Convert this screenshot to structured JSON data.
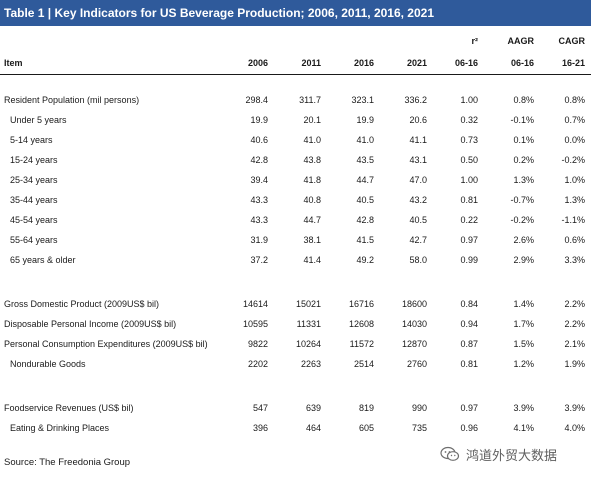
{
  "title": "Table 1 | Key Indicators for US Beverage Production; 2006, 2011, 2016, 2021",
  "header": {
    "row1": [
      "",
      "",
      "",
      "",
      "",
      "r²",
      "AAGR",
      "CAGR"
    ],
    "row2": [
      "Item",
      "2006",
      "2011",
      "2016",
      "2021",
      "06-16",
      "06-16",
      "16-21"
    ]
  },
  "groups": [
    {
      "rows": [
        {
          "label": "Resident Population (mil persons)",
          "indent": false,
          "values": [
            "298.4",
            "311.7",
            "323.1",
            "336.2",
            "1.00",
            "0.8%",
            "0.8%"
          ]
        },
        {
          "label": "Under 5 years",
          "indent": true,
          "values": [
            "19.9",
            "20.1",
            "19.9",
            "20.6",
            "0.32",
            "-0.1%",
            "0.7%"
          ]
        },
        {
          "label": "5-14 years",
          "indent": true,
          "values": [
            "40.6",
            "41.0",
            "41.0",
            "41.1",
            "0.73",
            "0.1%",
            "0.0%"
          ]
        },
        {
          "label": "15-24 years",
          "indent": true,
          "values": [
            "42.8",
            "43.8",
            "43.5",
            "43.1",
            "0.50",
            "0.2%",
            "-0.2%"
          ]
        },
        {
          "label": "25-34 years",
          "indent": true,
          "values": [
            "39.4",
            "41.8",
            "44.7",
            "47.0",
            "1.00",
            "1.3%",
            "1.0%"
          ]
        },
        {
          "label": "35-44 years",
          "indent": true,
          "values": [
            "43.3",
            "40.8",
            "40.5",
            "43.2",
            "0.81",
            "-0.7%",
            "1.3%"
          ]
        },
        {
          "label": "45-54 years",
          "indent": true,
          "values": [
            "43.3",
            "44.7",
            "42.8",
            "40.5",
            "0.22",
            "-0.2%",
            "-1.1%"
          ]
        },
        {
          "label": "55-64 years",
          "indent": true,
          "values": [
            "31.9",
            "38.1",
            "41.5",
            "42.7",
            "0.97",
            "2.6%",
            "0.6%"
          ]
        },
        {
          "label": "65 years & older",
          "indent": true,
          "values": [
            "37.2",
            "41.4",
            "49.2",
            "58.0",
            "0.99",
            "2.9%",
            "3.3%"
          ]
        }
      ]
    },
    {
      "rows": [
        {
          "label": "Gross Domestic Product (2009US$ bil)",
          "indent": false,
          "values": [
            "14614",
            "15021",
            "16716",
            "18600",
            "0.84",
            "1.4%",
            "2.2%"
          ]
        },
        {
          "label": "Disposable Personal Income (2009US$ bil)",
          "indent": false,
          "values": [
            "10595",
            "11331",
            "12608",
            "14030",
            "0.94",
            "1.7%",
            "2.2%"
          ]
        },
        {
          "label": "Personal Consumption Expenditures (2009US$ bil)",
          "indent": false,
          "values": [
            "9822",
            "10264",
            "11572",
            "12870",
            "0.87",
            "1.5%",
            "2.1%"
          ]
        },
        {
          "label": "Nondurable Goods",
          "indent": true,
          "values": [
            "2202",
            "2263",
            "2514",
            "2760",
            "0.81",
            "1.2%",
            "1.9%"
          ]
        }
      ]
    },
    {
      "rows": [
        {
          "label": "Foodservice Revenues (US$ bil)",
          "indent": false,
          "values": [
            "547",
            "639",
            "819",
            "990",
            "0.97",
            "3.9%",
            "3.9%"
          ]
        },
        {
          "label": "Eating & Drinking Places",
          "indent": true,
          "values": [
            "396",
            "464",
            "605",
            "735",
            "0.96",
            "4.1%",
            "4.0%"
          ]
        }
      ]
    }
  ],
  "source": "Source: The Freedonia Group",
  "watermark": {
    "icon": "wechat-icon",
    "text": "鸿道外贸大数据"
  },
  "colors": {
    "title_bar": "#2f5a9b",
    "title_text": "#ffffff",
    "text": "#1a1a1a"
  }
}
